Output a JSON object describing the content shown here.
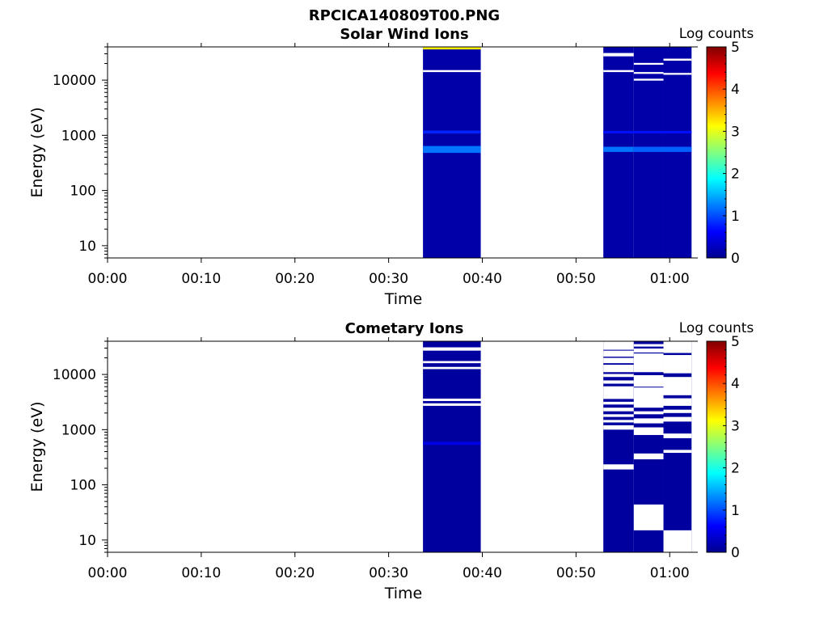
{
  "figure_title": "RPCICA140809T00.PNG",
  "chart_data": [
    {
      "type": "heatmap",
      "title": "Solar Wind Ions",
      "xlabel": "Time",
      "ylabel": "Energy (eV)",
      "colorbar_label": "Log counts",
      "colorbar_ticks": [
        "0",
        "1",
        "2",
        "3",
        "4",
        "5"
      ],
      "clim": [
        0,
        5
      ],
      "xlim": [
        "00:00",
        "01:03"
      ],
      "x_ticks": [
        "00:00",
        "00:10",
        "00:20",
        "00:30",
        "00:40",
        "00:50",
        "01:00"
      ],
      "y_scale": "log",
      "ylim": [
        6,
        40000
      ],
      "y_ticks": [
        "10",
        "100",
        "1000",
        "10000"
      ],
      "colormap": "jet",
      "blocks": [
        {
          "start": "00:33:40",
          "end": "00:39:50",
          "base_value": 0.2,
          "bands": [
            {
              "emin": 36000,
              "emax": 40000,
              "value": 3.2
            },
            {
              "emin": 14000,
              "emax": 15200,
              "value": null
            },
            {
              "emin": 480,
              "emax": 640,
              "value": 1.2
            },
            {
              "emin": 1080,
              "emax": 1220,
              "value": 0.8
            }
          ]
        },
        {
          "start": "00:52:55",
          "end": "00:56:10",
          "base_value": 0.2,
          "bands": [
            {
              "emin": 27000,
              "emax": 31000,
              "value": null
            },
            {
              "emin": 14000,
              "emax": 15200,
              "value": null
            },
            {
              "emin": 500,
              "emax": 620,
              "value": 1.2
            },
            {
              "emin": 1080,
              "emax": 1200,
              "value": 0.7
            }
          ]
        },
        {
          "start": "00:56:10",
          "end": "00:59:20",
          "base_value": 0.2,
          "bands": [
            {
              "emin": 19000,
              "emax": 20500,
              "value": null
            },
            {
              "emin": 13000,
              "emax": 14000,
              "value": null
            },
            {
              "emin": 9800,
              "emax": 10600,
              "value": null
            },
            {
              "emin": 500,
              "emax": 620,
              "value": 1.1
            },
            {
              "emin": 1080,
              "emax": 1200,
              "value": 0.7
            }
          ]
        },
        {
          "start": "00:59:20",
          "end": "01:02:20",
          "base_value": 0.2,
          "bands": [
            {
              "emin": 22500,
              "emax": 24500,
              "value": null
            },
            {
              "emin": 12500,
              "emax": 13500,
              "value": null
            },
            {
              "emin": 500,
              "emax": 620,
              "value": 1.1
            },
            {
              "emin": 1080,
              "emax": 1200,
              "value": 0.7
            }
          ]
        }
      ]
    },
    {
      "type": "heatmap",
      "title": "Cometary Ions",
      "xlabel": "Time",
      "ylabel": "Energy (eV)",
      "colorbar_label": "Log counts",
      "colorbar_ticks": [
        "0",
        "1",
        "2",
        "3",
        "4",
        "5"
      ],
      "clim": [
        0,
        5
      ],
      "xlim": [
        "00:00",
        "01:03"
      ],
      "x_ticks": [
        "00:00",
        "00:10",
        "00:20",
        "00:30",
        "00:40",
        "00:50",
        "01:00"
      ],
      "y_scale": "log",
      "ylim": [
        6,
        40000
      ],
      "y_ticks": [
        "10",
        "100",
        "1000",
        "10000"
      ],
      "colormap": "jet",
      "blocks": [
        {
          "start": "00:33:40",
          "end": "00:39:50",
          "base_value": 0.15,
          "bands": [
            {
              "emin": 27000,
              "emax": 31000,
              "value": null
            },
            {
              "emin": 16000,
              "emax": 17500,
              "value": null
            },
            {
              "emin": 12500,
              "emax": 13700,
              "value": null
            },
            {
              "emin": 3300,
              "emax": 3650,
              "value": null
            },
            {
              "emin": 2700,
              "emax": 3000,
              "value": null
            },
            {
              "emin": 530,
              "emax": 600,
              "value": 0.5
            }
          ]
        },
        {
          "start": "00:52:55",
          "end": "00:56:10",
          "base_value": 0.15,
          "bands": [
            {
              "emin": 28000,
              "emax": 40000,
              "value": null
            },
            {
              "emin": 21000,
              "emax": 27000,
              "value": null
            },
            {
              "emin": 16000,
              "emax": 20000,
              "value": null
            },
            {
              "emin": 11000,
              "emax": 15000,
              "value": null
            },
            {
              "emin": 9000,
              "emax": 10200,
              "value": null
            },
            {
              "emin": 6800,
              "emax": 7800,
              "value": null
            },
            {
              "emin": 3600,
              "emax": 6100,
              "value": null
            },
            {
              "emin": 2850,
              "emax": 3200,
              "value": null
            },
            {
              "emin": 2150,
              "emax": 2500,
              "value": null
            },
            {
              "emin": 1700,
              "emax": 1900,
              "value": null
            },
            {
              "emin": 1350,
              "emax": 1500,
              "value": null
            },
            {
              "emin": 1000,
              "emax": 1200,
              "value": null
            },
            {
              "emin": 190,
              "emax": 235,
              "value": null
            }
          ]
        },
        {
          "start": "00:56:10",
          "end": "00:59:20",
          "base_value": 0.15,
          "bands": [
            {
              "emin": 32000,
              "emax": 35500,
              "value": null
            },
            {
              "emin": 25000,
              "emax": 29500,
              "value": null
            },
            {
              "emin": 11000,
              "emax": 24000,
              "value": null
            },
            {
              "emin": 6000,
              "emax": 9700,
              "value": null
            },
            {
              "emin": 2500,
              "emax": 5800,
              "value": null
            },
            {
              "emin": 1900,
              "emax": 2150,
              "value": null
            },
            {
              "emin": 1300,
              "emax": 1600,
              "value": null
            },
            {
              "emin": 800,
              "emax": 1100,
              "value": null
            },
            {
              "emin": 290,
              "emax": 370,
              "value": null
            },
            {
              "emin": 15,
              "emax": 44,
              "value": null
            }
          ]
        },
        {
          "start": "00:59:20",
          "end": "01:02:20",
          "base_value": 0.15,
          "bands": [
            {
              "emin": 24500,
              "emax": 40000,
              "value": null
            },
            {
              "emin": 10500,
              "emax": 22500,
              "value": null
            },
            {
              "emin": 4200,
              "emax": 9000,
              "value": null
            },
            {
              "emin": 2700,
              "emax": 3700,
              "value": null
            },
            {
              "emin": 2000,
              "emax": 2300,
              "value": null
            },
            {
              "emin": 1400,
              "emax": 1700,
              "value": null
            },
            {
              "emin": 700,
              "emax": 850,
              "value": null
            },
            {
              "emin": 380,
              "emax": 430,
              "value": null
            },
            {
              "emin": 4,
              "emax": 15,
              "value": null
            }
          ]
        }
      ]
    }
  ]
}
